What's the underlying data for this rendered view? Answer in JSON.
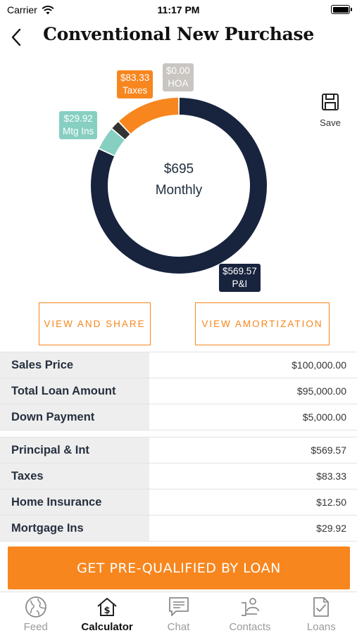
{
  "status_bar": {
    "carrier": "Carrier",
    "time": "11:17 PM"
  },
  "header": {
    "title": "Conventional New Purchase"
  },
  "chart": {
    "total": "$695",
    "period": "Monthly",
    "save_label": "Save",
    "labels": {
      "taxes_amount": "$83.33",
      "taxes_name": "Taxes",
      "hoa_amount": "$0.00",
      "hoa_name": "HOA",
      "mtg_amount": "$29.92",
      "mtg_name": "Mtg Ins",
      "pi_amount": "$569.57",
      "pi_name": "P&I"
    }
  },
  "chart_data": {
    "type": "pie",
    "categories": [
      "P&I",
      "Mtg Ins",
      "Home Insurance",
      "Taxes",
      "HOA"
    ],
    "values": [
      569.57,
      29.92,
      12.5,
      83.33,
      0.0
    ],
    "colors": [
      "#18243e",
      "#86cfc1",
      "#333333",
      "#f7861e",
      "#c9c6c2"
    ]
  },
  "buttons": {
    "view_share": "VIEW AND SHARE",
    "view_amortization": "VIEW AMORTIZATION"
  },
  "loan_rows": [
    {
      "label": "Sales Price",
      "value": "$100,000.00"
    },
    {
      "label": "Total Loan Amount",
      "value": "$95,000.00"
    },
    {
      "label": "Down Payment",
      "value": "$5,000.00"
    }
  ],
  "payment_rows": [
    {
      "label": "Principal & Int",
      "value": "$569.57"
    },
    {
      "label": "Taxes",
      "value": "$83.33"
    },
    {
      "label": "Home Insurance",
      "value": "$12.50"
    },
    {
      "label": "Mortgage Ins",
      "value": "$29.92"
    }
  ],
  "cta": {
    "label": "GET PRE-QUALIFIED BY LOAN"
  },
  "tabs": [
    {
      "label": "Feed",
      "icon": "globe-icon"
    },
    {
      "label": "Calculator",
      "icon": "house-dollar-icon"
    },
    {
      "label": "Chat",
      "icon": "chat-icon"
    },
    {
      "label": "Contacts",
      "icon": "contacts-icon"
    },
    {
      "label": "Loans",
      "icon": "document-check-icon"
    }
  ]
}
